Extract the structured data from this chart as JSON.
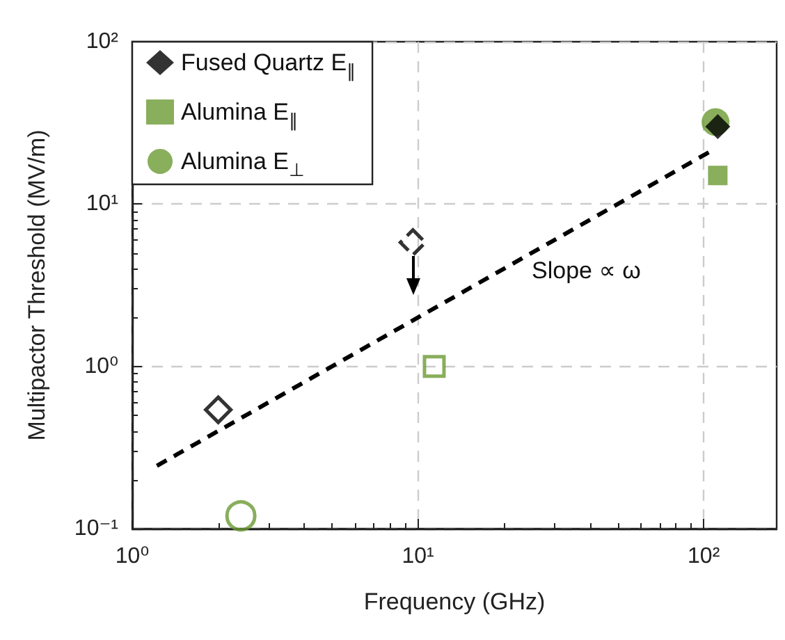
{
  "chart_data": {
    "type": "scatter",
    "xlabel": "Frequency (GHz)",
    "ylabel": "Multipactor Threshold (MV/m)",
    "log": "xy",
    "xlim": [
      1,
      180
    ],
    "ylim": [
      0.1,
      100
    ],
    "xticks": [
      {
        "value": 1,
        "label": "10⁰"
      },
      {
        "value": 10,
        "label": "10¹"
      },
      {
        "value": 100,
        "label": "10²"
      }
    ],
    "yticks": [
      {
        "value": 0.1,
        "label": "10⁻¹"
      },
      {
        "value": 1,
        "label": "10⁰"
      },
      {
        "value": 10,
        "label": "10¹"
      },
      {
        "value": 100,
        "label": "10²"
      }
    ],
    "grid": true,
    "legend": "top left",
    "annotations": [
      "Slope ∝ ω"
    ],
    "series": [
      {
        "name": "Fused Quartz E$_{∥}$",
        "color": "#000000",
        "marker": "diamond",
        "x": [
          112
        ],
        "values": [
          30
        ]
      },
      {
        "name": "Alumina E$_{∥}$",
        "color": "#6b9a33",
        "marker": "square",
        "x": [
          112
        ],
        "values": [
          15
        ]
      },
      {
        "name": "Alumina E$_{⊥}$",
        "color": "#6b9a33",
        "marker": "circle",
        "x": [
          110
        ],
        "values": [
          32
        ]
      },
      {
        "color": "#000000",
        "marker": "diamond",
        "x": [
          2
        ],
        "values": [
          0.54
        ]
      },
      {
        "color": "#000000",
        "marker": "diamond",
        "line_style": "dashed",
        "x": [
          9.6
        ],
        "values": [
          5.8
        ]
      },
      {
        "color": "#6b9a33",
        "marker": "square",
        "x": [
          11.4
        ],
        "values": [
          1.0
        ]
      },
      {
        "color": "#6b9a33",
        "marker": "circle",
        "x": [
          2.4
        ],
        "values": [
          0.12
        ]
      },
      {
        "type": "line",
        "color": "#000000",
        "line_style": "dashed",
        "marker": "none",
        "x": [
          1.22,
          110
        ],
        "values": [
          0.244,
          22
        ]
      }
    ]
  }
}
